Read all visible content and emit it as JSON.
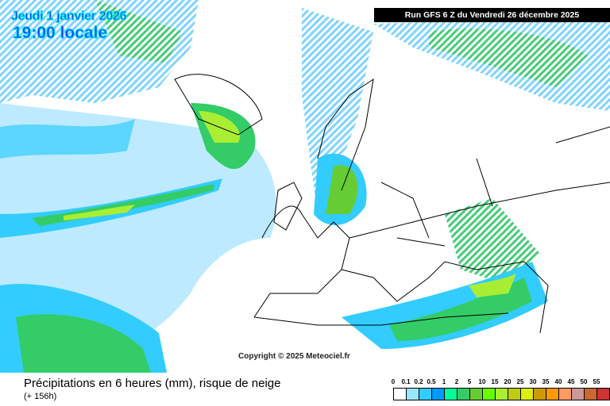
{
  "header": {
    "date": "Jeudi 1 janvier 2026",
    "time": "19:00 locale",
    "run": "Run GFS 6 Z du Vendredi 26 décembre 2025"
  },
  "copyright": "Copyright © 2025 Meteociel.fr",
  "footer": {
    "title": "Précipitations en 6 heures (mm), risque de neige",
    "subtitle": "(+ 156h)"
  },
  "legend": {
    "labels": [
      "0",
      "0.1",
      "0.2",
      "0.5",
      "1",
      "2",
      "5",
      "10",
      "15",
      "20",
      "25",
      "30",
      "35",
      "40",
      "45",
      "50",
      "55"
    ],
    "colors": [
      "#ffffff",
      "#99e6ff",
      "#33ccff",
      "#0099ff",
      "#00ff99",
      "#33cc66",
      "#66cc33",
      "#66ff00",
      "#aaee33",
      "#bbcc11",
      "#ddee11",
      "#cc9900",
      "#ff9900",
      "#ff9966",
      "#cc9999",
      "#cc6633",
      "#cc3333"
    ]
  }
}
